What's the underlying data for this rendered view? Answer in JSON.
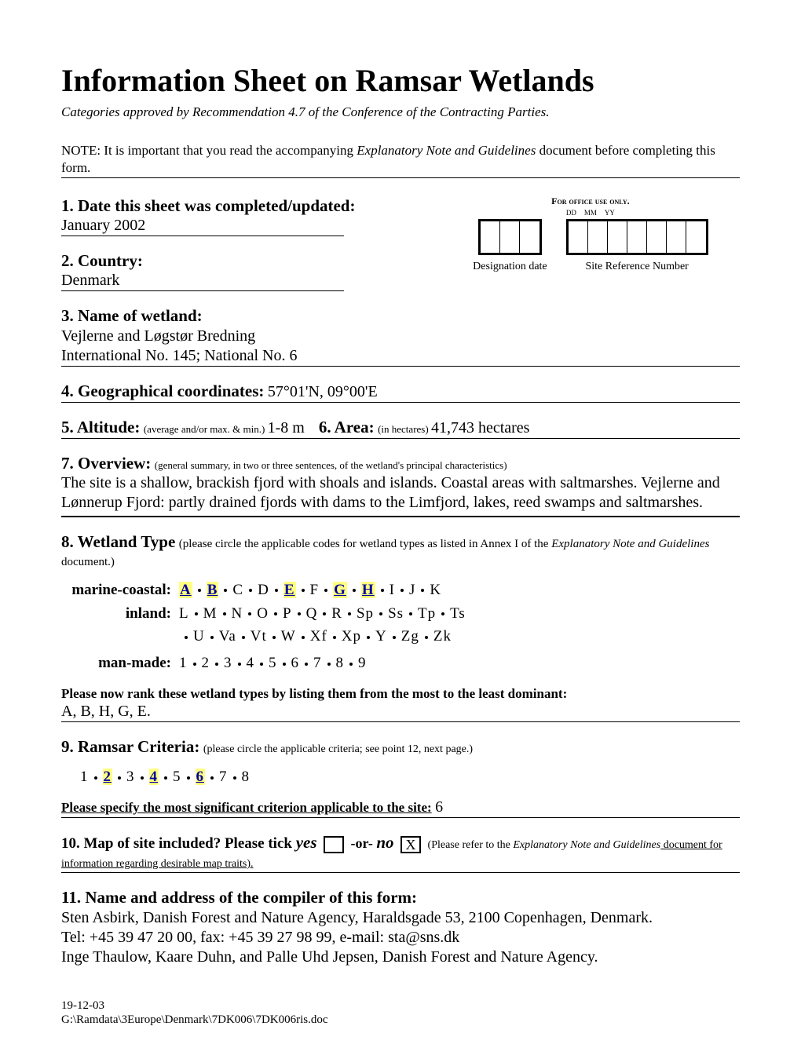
{
  "title": "Information Sheet on Ramsar Wetlands",
  "subtitle": "Categories approved by Recommendation 4.7 of the Conference of the Contracting Parties.",
  "note_prefix": "NOTE: It is important that you read the accompanying ",
  "note_ital": "Explanatory Note and Guidelines",
  "note_suffix": " document before completing this form.",
  "s1": {
    "label": "1. Date this sheet was completed/updated:",
    "value": "January 2002"
  },
  "office": {
    "label": "For office use only.",
    "ddmmyy": {
      "dd": "DD",
      "mm": "MM",
      "yy": "YY"
    },
    "desig_caption": "Designation date",
    "siteref_caption": "Site Reference Number"
  },
  "s2": {
    "label": "2.  Country:",
    "value": "Denmark"
  },
  "s3": {
    "label": "3. Name of wetland:",
    "line1": "Vejlerne and Løgstør Bredning",
    "line2": "International No. 145; National No. 6"
  },
  "s4": {
    "label": "4. Geographical coordinates:",
    "value": " 57°01'N, 09°00'E"
  },
  "s5": {
    "label": "5. Altitude:",
    "note": " (average and/or max. & min.) ",
    "value": "1-8 m"
  },
  "s6": {
    "label": "6. Area:",
    "note": " (in hectares) ",
    "value": "41,743 hectares"
  },
  "s7": {
    "label": "7. Overview:",
    "note": " (general summary, in two or three sentences, of the wetland's principal characteristics)",
    "text": "The site is a shallow, brackish fjord with shoals and islands. Coastal areas with saltmarshes. Vejlerne and Lønnerup Fjord: partly drained fjords with dams to the Limfjord, lakes, reed swamps and saltmarshes."
  },
  "s8": {
    "label": "8. Wetland Type",
    "note_prefix": " (please circle the applicable codes for wetland types as listed in Annex I of the ",
    "note_ital": "Explanatory Note and Guidelines",
    "note_suffix": " document.)",
    "marine_label": "marine-coastal:",
    "marine_codes": [
      "A",
      "B",
      "C",
      "D",
      "E",
      "F",
      "G",
      "H",
      "I",
      "J",
      "K"
    ],
    "marine_hl": [
      "A",
      "B",
      "E",
      "G",
      "H"
    ],
    "inland_label": "inland:",
    "inland_row1": [
      "L",
      "M",
      "N",
      "O",
      "P",
      "Q",
      "R",
      "Sp",
      "Ss",
      "Tp",
      "Ts"
    ],
    "inland_row2": [
      "U",
      "Va",
      "Vt",
      "W",
      "Xf",
      "Xp",
      "Y",
      "Zg",
      "Zk"
    ],
    "manmade_label": "man-made:",
    "manmade_codes": [
      "1",
      "2",
      "3",
      "4",
      "5",
      "6",
      "7",
      "8",
      "9"
    ],
    "rank_label": "Please now rank these wetland types by listing them from the most to the least dominant:",
    "rank_value": "A, B, H, G, E."
  },
  "s9": {
    "label": "9. Ramsar Criteria:",
    "note": " (please circle the applicable criteria; see point 12, next page.)",
    "codes": [
      "1",
      "2",
      "3",
      "4",
      "5",
      "6",
      "7",
      "8"
    ],
    "hl": [
      "2",
      "4",
      "6"
    ],
    "spec_label": "Please specify the most significant criterion applicable to the site:",
    "spec_value": "  6"
  },
  "s10": {
    "label": "10. Map of site included?  Please tick ",
    "yes": "yes",
    "or": "  -or-  ",
    "no": "no",
    "no_mark": "X",
    "hint_prefix": " (Please refer to the ",
    "hint_ital": "Explanatory Note and Guidelines",
    "hint_suffix": " document for information regarding desirable map traits)."
  },
  "s11": {
    "label": "11. Name and address of the compiler of this form:",
    "l1": "Sten Asbirk, Danish Forest and Nature Agency, Haraldsgade 53, 2100 Copenhagen, Denmark.",
    "l2": "Tel: +45 39 47 20 00, fax: +45 39 27 98 99, e-mail: sta@sns.dk",
    "l3": "Inge Thaulow, Kaare Duhn, and Palle Uhd Jepsen, Danish Forest and Nature Agency."
  },
  "footer": {
    "date": "19-12-03",
    "path": "G:\\Ramdata\\3Europe\\Denmark\\7DK006\\7DK006ris.doc"
  }
}
